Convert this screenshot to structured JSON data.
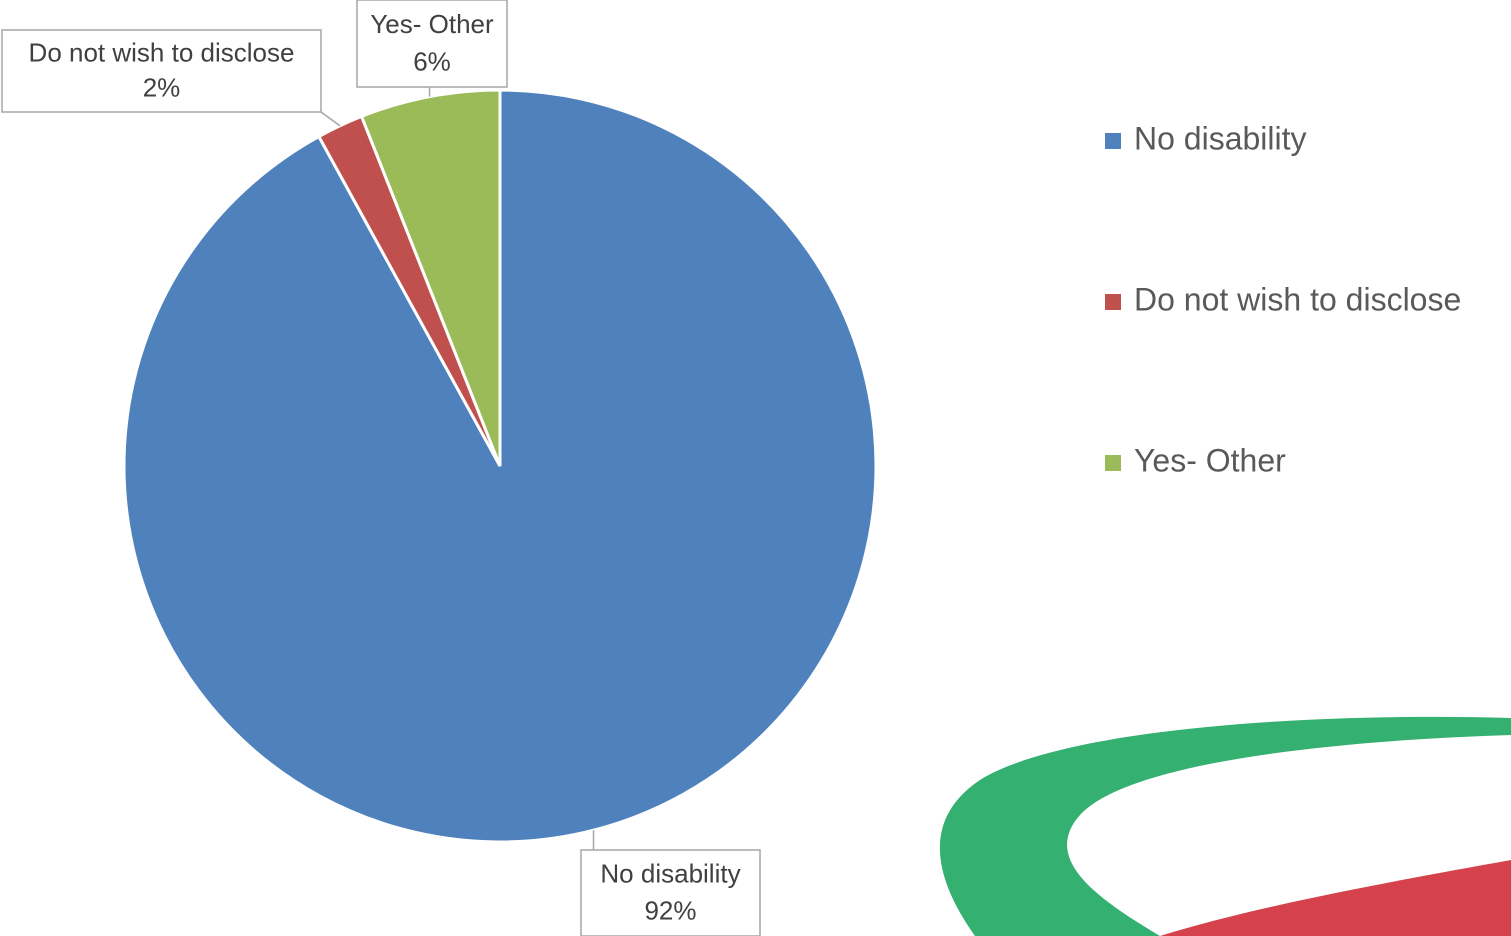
{
  "chart_data": {
    "type": "pie",
    "categories": [
      "No disability",
      "Do not wish to disclose",
      "Yes- Other"
    ],
    "values": [
      92,
      2,
      6
    ],
    "value_labels": [
      "92%",
      "2%",
      "6%"
    ],
    "colors": [
      "#4f81bd",
      "#c0504d",
      "#9bbb59"
    ],
    "legend": "right"
  }
}
